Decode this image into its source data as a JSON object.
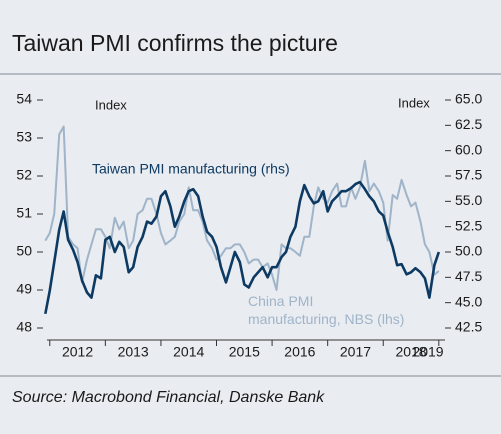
{
  "chart_data": {
    "type": "line",
    "title": "Taiwan PMI confirms the picture",
    "source": "Source: Macrobond Financial, Danske Bank",
    "annotations": [
      "Index",
      "Index"
    ],
    "xlim": [
      2011.95,
      2019.05
    ],
    "xticks": [
      2012,
      2013,
      2014,
      2015,
      2016,
      2017,
      2018,
      2019
    ],
    "ylim": [
      48,
      54
    ],
    "yticks": [
      48,
      49,
      50,
      51,
      52,
      53,
      54
    ],
    "y2lim": [
      42.5,
      65
    ],
    "y2ticks": [
      {
        "value": 42.5,
        "label": "42.5"
      },
      {
        "value": 45,
        "label": "45.0"
      },
      {
        "value": 47.5,
        "label": "47.5"
      },
      {
        "value": 50,
        "label": "50.0"
      },
      {
        "value": 52.5,
        "label": "52.5"
      },
      {
        "value": 55,
        "label": "55.0"
      },
      {
        "value": 57.5,
        "label": "57.5"
      },
      {
        "value": 60,
        "label": "60.0"
      },
      {
        "value": 62.5,
        "label": "62.5"
      },
      {
        "value": 65,
        "label": "65.0"
      }
    ],
    "x": [
      2011.92,
      2012.0,
      2012.08,
      2012.17,
      2012.25,
      2012.33,
      2012.42,
      2012.5,
      2012.58,
      2012.67,
      2012.75,
      2012.83,
      2012.92,
      2013.0,
      2013.08,
      2013.17,
      2013.25,
      2013.33,
      2013.42,
      2013.5,
      2013.58,
      2013.67,
      2013.75,
      2013.83,
      2013.92,
      2014.0,
      2014.08,
      2014.17,
      2014.25,
      2014.33,
      2014.42,
      2014.5,
      2014.58,
      2014.67,
      2014.75,
      2014.83,
      2014.92,
      2015.0,
      2015.08,
      2015.17,
      2015.25,
      2015.33,
      2015.42,
      2015.5,
      2015.58,
      2015.67,
      2015.75,
      2015.83,
      2015.92,
      2016.0,
      2016.08,
      2016.17,
      2016.25,
      2016.33,
      2016.42,
      2016.5,
      2016.58,
      2016.67,
      2016.75,
      2016.83,
      2016.92,
      2017.0,
      2017.08,
      2017.17,
      2017.25,
      2017.33,
      2017.42,
      2017.5,
      2017.58,
      2017.67,
      2017.75,
      2017.83,
      2017.92,
      2018.0,
      2018.08,
      2018.17,
      2018.25,
      2018.33,
      2018.42,
      2018.5,
      2018.58,
      2018.67,
      2018.75,
      2018.83,
      2018.92,
      2019.0
    ],
    "series": [
      {
        "name": "China PMI manufacturing, NBS (lhs)",
        "color": "#9fb4c9",
        "values": [
          50.3,
          50.5,
          51.0,
          53.1,
          53.3,
          50.4,
          50.2,
          50.1,
          49.2,
          49.8,
          50.2,
          50.6,
          50.6,
          50.4,
          50.1,
          50.9,
          50.6,
          50.8,
          50.1,
          50.3,
          51.0,
          51.1,
          51.4,
          51.4,
          51.0,
          50.5,
          50.2,
          50.3,
          50.4,
          50.8,
          51.0,
          51.7,
          51.1,
          51.1,
          50.8,
          50.3,
          50.1,
          49.8,
          49.9,
          50.1,
          50.1,
          50.2,
          50.2,
          50.0,
          49.7,
          49.8,
          49.8,
          49.6,
          49.7,
          49.4,
          49.0,
          50.2,
          50.1,
          50.1,
          50.0,
          49.9,
          50.4,
          50.4,
          51.2,
          51.7,
          51.4,
          51.3,
          51.6,
          51.8,
          51.2,
          51.2,
          51.7,
          51.4,
          51.7,
          52.4,
          51.6,
          51.8,
          51.6,
          51.3,
          50.3,
          51.5,
          51.4,
          51.9,
          51.5,
          51.2,
          51.3,
          50.8,
          50.2,
          50.0,
          49.4,
          49.5
        ]
      },
      {
        "name": "Taiwan PMI manufacturing (rhs)",
        "color": "#0d3a63",
        "axis": "y2",
        "values": [
          43.9,
          46.2,
          49.0,
          52.2,
          54.0,
          51.2,
          50.2,
          49.0,
          47.2,
          46.0,
          45.5,
          47.7,
          47.4,
          51.2,
          51.5,
          50.0,
          51.0,
          50.5,
          48.0,
          48.5,
          50.5,
          51.5,
          53.0,
          52.8,
          53.5,
          55.5,
          56.0,
          54.5,
          52.5,
          53.5,
          55.0,
          56.0,
          56.2,
          55.5,
          53.5,
          52.0,
          51.5,
          50.5,
          48.5,
          47.0,
          48.5,
          50.0,
          49.0,
          46.8,
          46.5,
          47.5,
          48.0,
          48.5,
          47.5,
          48.5,
          48.5,
          49.5,
          50.0,
          51.5,
          52.5,
          55.0,
          56.6,
          55.5,
          54.8,
          55.0,
          56.0,
          54.0,
          55.0,
          55.5,
          56.0,
          56.0,
          56.3,
          56.7,
          56.9,
          56.2,
          55.5,
          55.0,
          54.0,
          53.6,
          52.0,
          50.5,
          48.7,
          48.8,
          47.8,
          48.0,
          48.4,
          48.0,
          47.4,
          45.5,
          48.7,
          50.0
        ]
      }
    ]
  }
}
